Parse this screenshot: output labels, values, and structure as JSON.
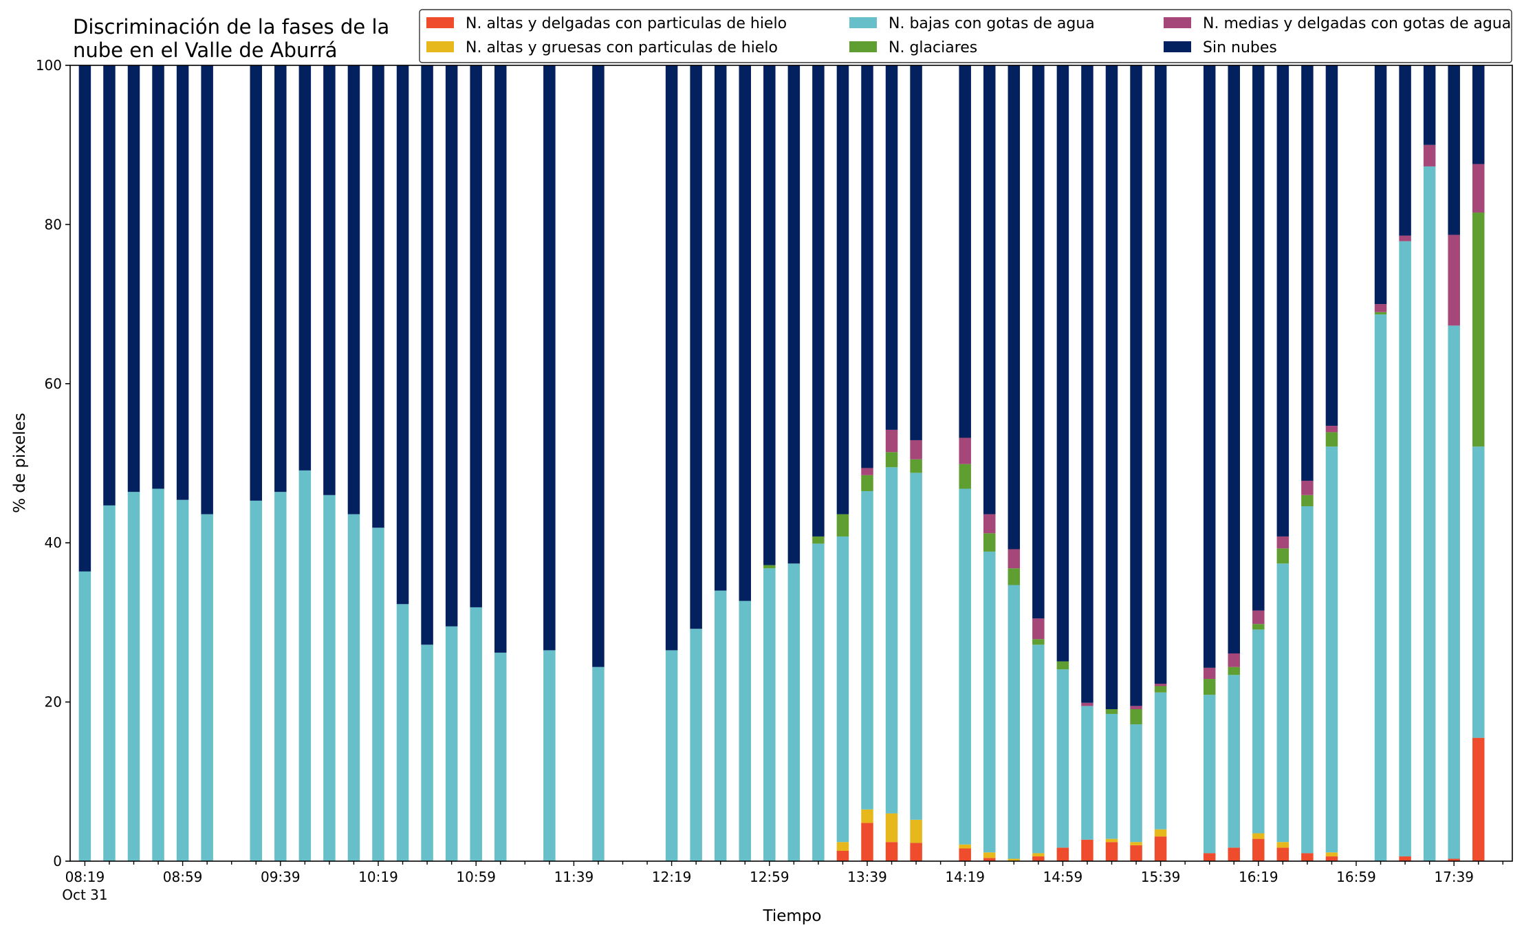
{
  "chart_data": {
    "type": "bar",
    "stacked": true,
    "title_lines": [
      "Discriminación de la fases de la",
      "nube en el Valle de Aburrá"
    ],
    "xlabel": "Tiempo",
    "ylabel": "% de pixeles",
    "ylim": [
      0,
      100
    ],
    "yticks": [
      "0",
      "20",
      "40",
      "60",
      "80",
      "100"
    ],
    "grid": false,
    "legend_position": "top-right",
    "x_start_label": "08:19",
    "x_end_label": "17:49",
    "x_interval_minutes": 10,
    "xtick_labels": [
      {
        "slot": 0,
        "text": "08:19",
        "sub": "Oct 31"
      },
      {
        "slot": 4,
        "text": "08:59"
      },
      {
        "slot": 8,
        "text": "09:39"
      },
      {
        "slot": 12,
        "text": "10:19"
      },
      {
        "slot": 16,
        "text": "10:59"
      },
      {
        "slot": 20,
        "text": "11:39"
      },
      {
        "slot": 24,
        "text": "12:19"
      },
      {
        "slot": 28,
        "text": "12:59"
      },
      {
        "slot": 32,
        "text": "13:39"
      },
      {
        "slot": 36,
        "text": "14:19"
      },
      {
        "slot": 40,
        "text": "14:59"
      },
      {
        "slot": 44,
        "text": "15:39"
      },
      {
        "slot": 48,
        "text": "16:19"
      },
      {
        "slot": 52,
        "text": "16:59"
      },
      {
        "slot": 56,
        "text": "17:39"
      }
    ],
    "series_names": [
      "N. altas y delgadas con particulas de hielo",
      "N. altas y gruesas con particulas de hielo",
      "N. bajas con gotas de agua",
      "N. glaciares",
      "N. medias y delgadas con gotas de agua",
      "Sin nubes"
    ],
    "series_colors": [
      "#ee4c2c",
      "#e6b81c",
      "#67bfca",
      "#5f9e31",
      "#a6477a",
      "#03205f"
    ],
    "legend_columns": [
      [
        0,
        1
      ],
      [
        2,
        3
      ],
      [
        4,
        5
      ]
    ],
    "bars": [
      {
        "time": "08:19",
        "values": [
          0,
          0,
          36.4,
          0,
          0,
          63.6
        ]
      },
      {
        "time": "08:29",
        "values": [
          0,
          0,
          44.7,
          0,
          0,
          55.3
        ]
      },
      {
        "time": "08:39",
        "values": [
          0,
          0,
          46.4,
          0,
          0,
          53.6
        ]
      },
      {
        "time": "08:49",
        "values": [
          0,
          0,
          46.8,
          0,
          0,
          53.2
        ]
      },
      {
        "time": "08:59",
        "values": [
          0,
          0,
          45.4,
          0,
          0,
          54.6
        ]
      },
      {
        "time": "09:09",
        "values": [
          0,
          0,
          43.6,
          0,
          0,
          56.4
        ]
      },
      {
        "time": "09:29",
        "values": [
          0,
          0,
          45.3,
          0,
          0,
          54.7
        ]
      },
      {
        "time": "09:39",
        "values": [
          0,
          0,
          46.4,
          0,
          0,
          53.6
        ]
      },
      {
        "time": "09:49",
        "values": [
          0,
          0,
          49.1,
          0,
          0,
          50.9
        ]
      },
      {
        "time": "09:59",
        "values": [
          0,
          0,
          46.0,
          0,
          0,
          54.0
        ]
      },
      {
        "time": "10:09",
        "values": [
          0,
          0,
          43.6,
          0,
          0,
          56.4
        ]
      },
      {
        "time": "10:19",
        "values": [
          0,
          0,
          41.9,
          0,
          0,
          58.1
        ]
      },
      {
        "time": "10:29",
        "values": [
          0,
          0,
          32.3,
          0,
          0,
          67.7
        ]
      },
      {
        "time": "10:39",
        "values": [
          0,
          0,
          27.2,
          0,
          0,
          72.8
        ]
      },
      {
        "time": "10:49",
        "values": [
          0,
          0,
          29.5,
          0,
          0,
          70.5
        ]
      },
      {
        "time": "10:59",
        "values": [
          0,
          0,
          31.9,
          0,
          0,
          68.1
        ]
      },
      {
        "time": "11:09",
        "values": [
          0,
          0,
          26.2,
          0,
          0,
          73.8
        ]
      },
      {
        "time": "11:29",
        "values": [
          0,
          0,
          26.5,
          0,
          0,
          73.5
        ]
      },
      {
        "time": "11:49",
        "values": [
          0,
          0,
          24.4,
          0,
          0,
          75.6
        ]
      },
      {
        "time": "12:19",
        "values": [
          0,
          0,
          26.5,
          0,
          0,
          73.5
        ]
      },
      {
        "time": "12:29",
        "values": [
          0,
          0,
          29.2,
          0,
          0,
          70.8
        ]
      },
      {
        "time": "12:39",
        "values": [
          0,
          0,
          34.0,
          0,
          0,
          66.0
        ]
      },
      {
        "time": "12:49",
        "values": [
          0,
          0,
          32.7,
          0,
          0,
          67.3
        ]
      },
      {
        "time": "12:59",
        "values": [
          0,
          0,
          36.8,
          0.4,
          0,
          62.8
        ]
      },
      {
        "time": "13:09",
        "values": [
          0,
          0,
          37.4,
          0,
          0,
          62.6
        ]
      },
      {
        "time": "13:19",
        "values": [
          0,
          0,
          39.9,
          0.9,
          0,
          59.2
        ]
      },
      {
        "time": "13:29",
        "values": [
          1.3,
          1.1,
          38.4,
          2.8,
          0,
          56.4
        ]
      },
      {
        "time": "13:39",
        "values": [
          4.8,
          1.7,
          40.0,
          2.0,
          0.9,
          50.6
        ]
      },
      {
        "time": "13:49",
        "values": [
          2.4,
          3.6,
          43.5,
          1.9,
          2.8,
          45.8
        ]
      },
      {
        "time": "13:59",
        "values": [
          2.3,
          2.9,
          43.6,
          1.7,
          2.4,
          47.1
        ]
      },
      {
        "time": "14:19",
        "values": [
          1.6,
          0.5,
          44.7,
          3.1,
          3.3,
          46.8
        ]
      },
      {
        "time": "14:29",
        "values": [
          0.4,
          0.7,
          37.8,
          2.3,
          2.4,
          56.4
        ]
      },
      {
        "time": "14:39",
        "values": [
          0,
          0.3,
          34.4,
          2.1,
          2.4,
          60.8
        ]
      },
      {
        "time": "14:49",
        "values": [
          0.6,
          0.4,
          26.2,
          0.7,
          2.6,
          69.5
        ]
      },
      {
        "time": "14:59",
        "values": [
          1.7,
          0,
          22.4,
          1.0,
          0,
          74.9
        ]
      },
      {
        "time": "15:09",
        "values": [
          2.7,
          0,
          16.8,
          0,
          0.4,
          80.1
        ]
      },
      {
        "time": "15:19",
        "values": [
          2.4,
          0.4,
          15.7,
          0.6,
          0,
          80.9
        ]
      },
      {
        "time": "15:29",
        "values": [
          2.0,
          0.4,
          14.8,
          1.9,
          0.4,
          80.5
        ]
      },
      {
        "time": "15:39",
        "values": [
          3.1,
          0.9,
          17.2,
          0.8,
          0.3,
          77.7
        ]
      },
      {
        "time": "15:59",
        "values": [
          1.0,
          0,
          19.9,
          2.0,
          1.4,
          75.7
        ]
      },
      {
        "time": "16:09",
        "values": [
          1.7,
          0,
          21.7,
          1.0,
          1.7,
          73.9
        ]
      },
      {
        "time": "16:19",
        "values": [
          2.8,
          0.7,
          25.6,
          0.7,
          1.7,
          68.5
        ]
      },
      {
        "time": "16:29",
        "values": [
          1.7,
          0.7,
          35.0,
          1.9,
          1.5,
          59.2
        ]
      },
      {
        "time": "16:39",
        "values": [
          1.0,
          0,
          43.6,
          1.4,
          1.8,
          52.2
        ]
      },
      {
        "time": "16:49",
        "values": [
          0.6,
          0.5,
          51.0,
          1.8,
          0.8,
          45.3
        ]
      },
      {
        "time": "17:09",
        "values": [
          0,
          0,
          68.7,
          0.3,
          1.0,
          30.0
        ]
      },
      {
        "time": "17:19",
        "values": [
          0.6,
          0,
          77.3,
          0,
          0.7,
          21.4
        ]
      },
      {
        "time": "17:29",
        "values": [
          0,
          0,
          87.3,
          0,
          2.7,
          10.0
        ]
      },
      {
        "time": "17:39",
        "values": [
          0.3,
          0,
          67.0,
          0,
          11.4,
          21.3
        ]
      },
      {
        "time": "17:49",
        "values": [
          15.5,
          0,
          36.6,
          29.4,
          6.1,
          12.4
        ]
      }
    ]
  }
}
